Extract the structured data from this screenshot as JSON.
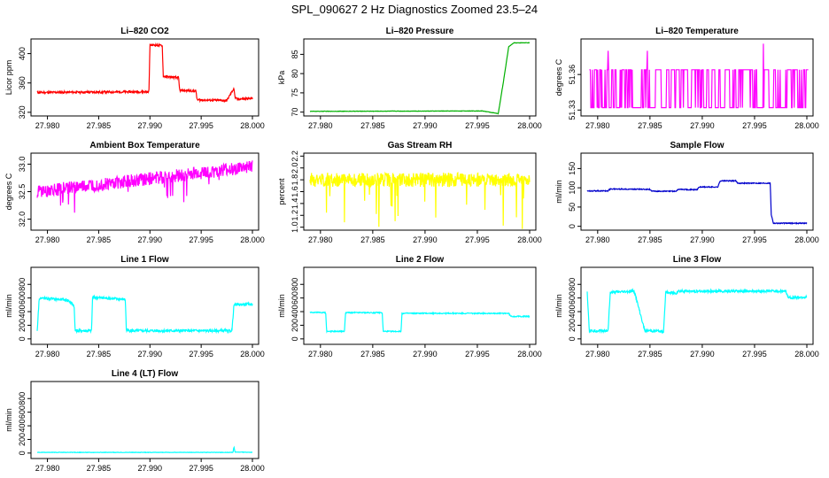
{
  "page": {
    "title": "SPL_090627  2 Hz Diagnostics Zoomed 23.5–24"
  },
  "chart_data": [
    {
      "id": "co2",
      "type": "line",
      "title": "Li–820 CO2",
      "ylabel": "Licor ppm",
      "xlabel": "",
      "color": "#ff0000",
      "xlim": [
        27.979,
        28.0
      ],
      "ylim": [
        315,
        420
      ],
      "xticks": [
        "27.980",
        "27.985",
        "27.990",
        "27.995",
        "28.000"
      ],
      "yticks": [
        "320",
        "360",
        "400"
      ],
      "x": [
        27.979,
        27.9899,
        27.99,
        27.9912,
        27.9913,
        27.9928,
        27.9929,
        27.9945,
        27.9946,
        27.9975,
        27.9982,
        27.9983,
        27.9985,
        28.0
      ],
      "y": [
        347,
        348,
        412,
        411,
        369,
        367,
        350,
        349,
        337,
        336,
        353,
        340,
        338,
        339
      ],
      "noise": 1.5
    },
    {
      "id": "pressure",
      "type": "line",
      "title": "Li–820 Pressure",
      "ylabel": "kPa",
      "xlabel": "",
      "color": "#00b000",
      "xlim": [
        27.979,
        28.0
      ],
      "ylim": [
        69,
        89
      ],
      "xticks": [
        "27.980",
        "27.985",
        "27.990",
        "27.995",
        "28.000"
      ],
      "yticks": [
        "70",
        "75",
        "80",
        "85"
      ],
      "x": [
        27.979,
        27.995,
        27.9955,
        27.997,
        27.9975,
        27.998,
        27.9985,
        28.0
      ],
      "y": [
        70.2,
        70.3,
        70.3,
        69.6,
        78,
        87,
        88,
        88
      ],
      "noise": 0.05
    },
    {
      "id": "li820temp",
      "type": "line",
      "title": "Li–820 Temperature",
      "ylabel": "degrees C",
      "xlabel": "",
      "color": "#ff00ff",
      "xlim": [
        27.979,
        28.0
      ],
      "ylim": [
        51.325,
        51.39
      ],
      "xticks": [
        "27.980",
        "27.985",
        "27.990",
        "27.995",
        "28.000"
      ],
      "yticks": [
        "51.33",
        "51.36"
      ],
      "levels": [
        51.332,
        51.364
      ],
      "spikes_up": [
        51.38,
        51.386
      ],
      "noise": 0
    },
    {
      "id": "ambient",
      "type": "line",
      "title": "Ambient Box Temperature",
      "ylabel": "degrees C",
      "xlabel": "",
      "color": "#ff00ff",
      "xlim": [
        27.979,
        28.0
      ],
      "ylim": [
        31.8,
        33.2
      ],
      "xticks": [
        "27.980",
        "27.985",
        "27.990",
        "27.995",
        "28.000"
      ],
      "yticks": [
        "32.0",
        "32.5",
        "33.0"
      ],
      "x": [
        27.979,
        28.0
      ],
      "y": [
        32.5,
        32.95
      ],
      "noise": 0.12
    },
    {
      "id": "rh",
      "type": "line",
      "title": "Gas Stream RH",
      "ylabel": "percent",
      "xlabel": "",
      "color": "#ffff00",
      "xlim": [
        27.979,
        28.0
      ],
      "ylim": [
        0.95,
        2.25
      ],
      "xticks": [
        "27.980",
        "27.985",
        "27.990",
        "27.995",
        "28.000"
      ],
      "yticks": [
        "1.0",
        "1.2",
        "1.4",
        "1.6",
        "1.8",
        "2.0",
        "2.2"
      ],
      "x": [
        27.979,
        28.0
      ],
      "y": [
        1.8,
        1.8
      ],
      "noise": 0.12
    },
    {
      "id": "sampleflow",
      "type": "line",
      "title": "Sample Flow",
      "ylabel": "ml/min",
      "xlabel": "",
      "color": "#0000cc",
      "xlim": [
        27.979,
        28.0
      ],
      "ylim": [
        -10,
        190
      ],
      "xticks": [
        "27.980",
        "27.985",
        "27.990",
        "27.995",
        "28.000"
      ],
      "yticks": [
        "0",
        "50",
        "100",
        "150"
      ],
      "x": [
        27.979,
        27.981,
        27.9812,
        27.985,
        27.9852,
        27.9875,
        27.9877,
        27.9895,
        27.9897,
        27.9915,
        27.9917,
        27.9932,
        27.9934,
        27.9965,
        27.9966,
        27.9968,
        28.0
      ],
      "y": [
        92,
        92,
        97,
        96,
        91,
        91,
        96,
        95,
        102,
        102,
        118,
        118,
        112,
        112,
        30,
        8,
        8
      ],
      "noise": 1.2
    },
    {
      "id": "line1",
      "type": "line",
      "title": "Line 1 Flow",
      "ylabel": "ml/min",
      "xlabel": "",
      "color": "#00ffff",
      "xlim": [
        27.979,
        28.0
      ],
      "ylim": [
        -80,
        1050
      ],
      "xticks": [
        "27.980",
        "27.985",
        "27.990",
        "27.995",
        "28.000"
      ],
      "yticks": [
        "0",
        "200",
        "400",
        "600",
        "800"
      ],
      "x": [
        27.979,
        27.9792,
        27.982,
        27.9826,
        27.9827,
        27.9843,
        27.9844,
        27.9876,
        27.9877,
        27.998,
        27.9982,
        28.0
      ],
      "y": [
        120,
        600,
        570,
        490,
        120,
        120,
        610,
        580,
        120,
        120,
        500,
        510
      ],
      "noise": 20
    },
    {
      "id": "line2",
      "type": "line",
      "title": "Line 2 Flow",
      "ylabel": "ml/min",
      "xlabel": "",
      "color": "#00ffff",
      "xlim": [
        27.979,
        28.0
      ],
      "ylim": [
        -80,
        1050
      ],
      "xticks": [
        "27.980",
        "27.985",
        "27.990",
        "27.995",
        "28.000"
      ],
      "yticks": [
        "0",
        "200",
        "400",
        "600",
        "800"
      ],
      "x": [
        27.979,
        27.9805,
        27.9806,
        27.9823,
        27.9824,
        27.9859,
        27.986,
        27.9877,
        27.9878,
        27.998,
        27.9982,
        28.0
      ],
      "y": [
        390,
        385,
        110,
        110,
        385,
        385,
        110,
        110,
        375,
        375,
        330,
        330
      ],
      "noise": 8
    },
    {
      "id": "line3",
      "type": "line",
      "title": "Line 3 Flow",
      "ylabel": "ml/min",
      "xlabel": "",
      "color": "#00ffff",
      "xlim": [
        27.979,
        28.0
      ],
      "ylim": [
        -80,
        1050
      ],
      "xticks": [
        "27.980",
        "27.985",
        "27.990",
        "27.995",
        "28.000"
      ],
      "yticks": [
        "0",
        "200",
        "400",
        "600",
        "800"
      ],
      "x": [
        27.979,
        27.9792,
        27.9793,
        27.981,
        27.9812,
        27.9835,
        27.9845,
        27.9846,
        27.9863,
        27.9865,
        27.9875,
        27.9877,
        27.998,
        27.9982,
        28.0
      ],
      "y": [
        700,
        120,
        120,
        120,
        680,
        700,
        120,
        120,
        110,
        680,
        670,
        700,
        700,
        610,
        610
      ],
      "noise": 20
    },
    {
      "id": "line4",
      "type": "line",
      "title": "Line 4 (LT) Flow",
      "ylabel": "ml/min",
      "xlabel": "",
      "color": "#00ffff",
      "xlim": [
        27.979,
        28.0
      ],
      "ylim": [
        -80,
        1050
      ],
      "xticks": [
        "27.980",
        "27.985",
        "27.990",
        "27.995",
        "28.000"
      ],
      "yticks": [
        "0",
        "200",
        "400",
        "600",
        "800"
      ],
      "x": [
        27.979,
        27.9981,
        27.9982,
        27.9983,
        28.0
      ],
      "y": [
        10,
        10,
        90,
        15,
        10
      ],
      "noise": 3
    }
  ]
}
